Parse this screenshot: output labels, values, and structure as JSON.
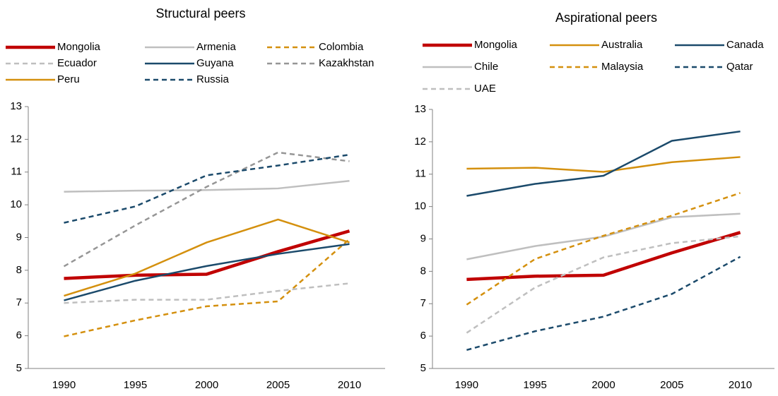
{
  "chart_data": [
    {
      "type": "line",
      "title": "Structural peers",
      "categories": [
        "1990",
        "1995",
        "2000",
        "2005",
        "2010"
      ],
      "ylim": [
        5,
        13
      ],
      "yticks": [
        5,
        6,
        7,
        8,
        9,
        10,
        11,
        12,
        13
      ],
      "series": [
        {
          "name": "Mongolia",
          "color": "#c00000",
          "dashed": false,
          "linewidth": 4.5,
          "values": [
            7.75,
            7.85,
            7.88,
            8.57,
            9.2
          ]
        },
        {
          "name": "Armenia",
          "color": "#bfbfbf",
          "dashed": false,
          "linewidth": 2.5,
          "values": [
            10.4,
            10.43,
            10.45,
            10.5,
            10.73
          ]
        },
        {
          "name": "Colombia",
          "color": "#d4900e",
          "dashed": true,
          "linewidth": 2.5,
          "values": [
            5.98,
            6.47,
            6.9,
            7.05,
            8.95
          ]
        },
        {
          "name": "Ecuador",
          "color": "#bfbfbf",
          "dashed": true,
          "linewidth": 2.5,
          "values": [
            7.0,
            7.1,
            7.1,
            7.37,
            7.6
          ]
        },
        {
          "name": "Guyana",
          "color": "#1b4a6b",
          "dashed": false,
          "linewidth": 2.5,
          "values": [
            7.08,
            7.68,
            8.13,
            8.5,
            8.8
          ]
        },
        {
          "name": "Kazakhstan",
          "color": "#969696",
          "dashed": true,
          "linewidth": 2.5,
          "values": [
            8.12,
            9.37,
            10.55,
            11.6,
            11.33
          ]
        },
        {
          "name": "Peru",
          "color": "#d4900e",
          "dashed": false,
          "linewidth": 2.5,
          "values": [
            7.22,
            7.9,
            8.85,
            9.55,
            8.85
          ]
        },
        {
          "name": "Russia",
          "color": "#1b4a6b",
          "dashed": true,
          "linewidth": 2.5,
          "values": [
            9.45,
            9.95,
            10.9,
            11.2,
            11.53
          ]
        }
      ]
    },
    {
      "type": "line",
      "title": "Aspirational peers",
      "categories": [
        "1990",
        "1995",
        "2000",
        "2005",
        "2010"
      ],
      "ylim": [
        5,
        13
      ],
      "yticks": [
        5,
        6,
        7,
        8,
        9,
        10,
        11,
        12,
        13
      ],
      "series": [
        {
          "name": "Mongolia",
          "color": "#c00000",
          "dashed": false,
          "linewidth": 4.5,
          "values": [
            7.75,
            7.85,
            7.88,
            8.57,
            9.2
          ]
        },
        {
          "name": "Australia",
          "color": "#d4900e",
          "dashed": false,
          "linewidth": 2.5,
          "values": [
            11.17,
            11.2,
            11.07,
            11.37,
            11.53
          ]
        },
        {
          "name": "Canada",
          "color": "#1b4a6b",
          "dashed": false,
          "linewidth": 2.5,
          "values": [
            10.33,
            10.7,
            10.95,
            12.03,
            12.32
          ]
        },
        {
          "name": "Chile",
          "color": "#bfbfbf",
          "dashed": false,
          "linewidth": 2.5,
          "values": [
            8.37,
            8.78,
            9.07,
            9.67,
            9.78
          ]
        },
        {
          "name": "Malaysia",
          "color": "#d4900e",
          "dashed": true,
          "linewidth": 2.5,
          "values": [
            6.97,
            8.38,
            9.1,
            9.72,
            10.42
          ]
        },
        {
          "name": "Qatar",
          "color": "#1b4a6b",
          "dashed": true,
          "linewidth": 2.5,
          "values": [
            5.57,
            6.15,
            6.6,
            7.3,
            8.45
          ]
        },
        {
          "name": "UAE",
          "color": "#bfbfbf",
          "dashed": true,
          "linewidth": 2.5,
          "values": [
            6.1,
            7.5,
            8.43,
            8.87,
            9.08
          ]
        }
      ]
    }
  ]
}
